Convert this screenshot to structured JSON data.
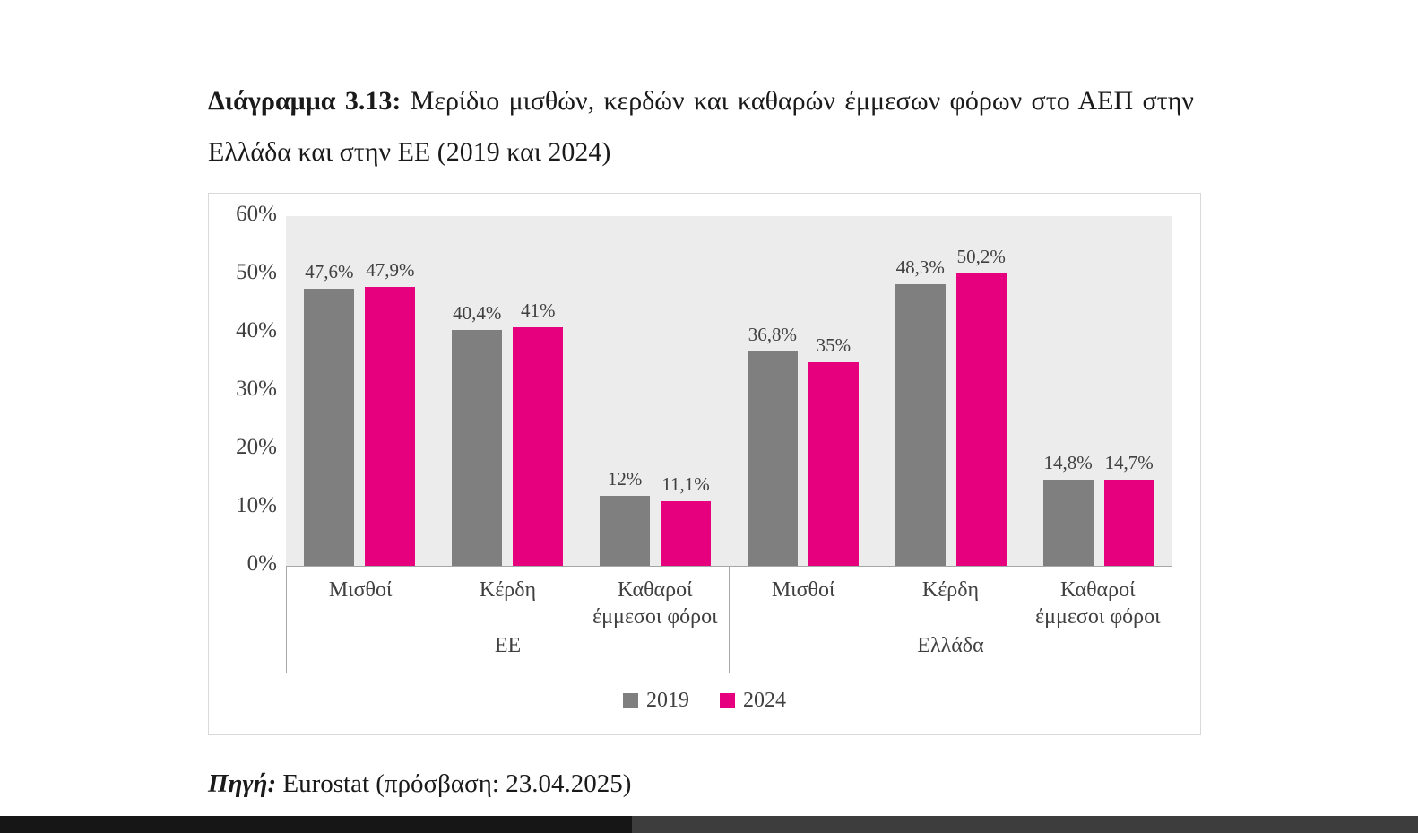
{
  "title": {
    "prefix": "Διάγραμμα 3.13:",
    "text": " Μερίδιο μισθών, κερδών και καθαρών έμμεσων φόρων στο ΑΕΠ στην Ελλάδα και στην ΕΕ (2019 και 2024)"
  },
  "source": {
    "prefix": "Πηγή:",
    "text": " Eurostat (πρόσβαση: 23.04.2025)"
  },
  "colors": {
    "series_2019": "#7f7f7f",
    "series_2024": "#e6007e",
    "plot_background": "#ececec",
    "axis_line": "#a6a6a6"
  },
  "chart_data": {
    "type": "bar",
    "title": "Μερίδιο μισθών, κερδών και καθαρών έμμεσων φόρων στο ΑΕΠ στην Ελλάδα και στην ΕΕ (2019 και 2024)",
    "groups": [
      {
        "label": "ΕΕ",
        "categories": [
          "Μισθοί",
          "Κέρδη",
          "Καθαροί έμμεσοι φόροι"
        ]
      },
      {
        "label": "Ελλάδα",
        "categories": [
          "Μισθοί",
          "Κέρδη",
          "Καθαροί έμμεσοι φόροι"
        ]
      }
    ],
    "series": [
      {
        "name": "2019",
        "color": "#7f7f7f",
        "values": [
          47.6,
          40.4,
          12,
          36.8,
          48.3,
          14.8
        ],
        "labels": [
          "47,6%",
          "40,4%",
          "12%",
          "36,8%",
          "48,3%",
          "14,8%"
        ]
      },
      {
        "name": "2024",
        "color": "#e6007e",
        "values": [
          47.9,
          41,
          11.1,
          35,
          50.2,
          14.7
        ],
        "labels": [
          "47,9%",
          "41%",
          "11,1%",
          "35%",
          "50,2%",
          "14,7%"
        ]
      }
    ],
    "ylim": [
      0,
      60
    ],
    "yticks": [
      "60%",
      "50%",
      "40%",
      "30%",
      "20%",
      "10%",
      "0%"
    ],
    "grid": false,
    "legend_position": "bottom"
  }
}
